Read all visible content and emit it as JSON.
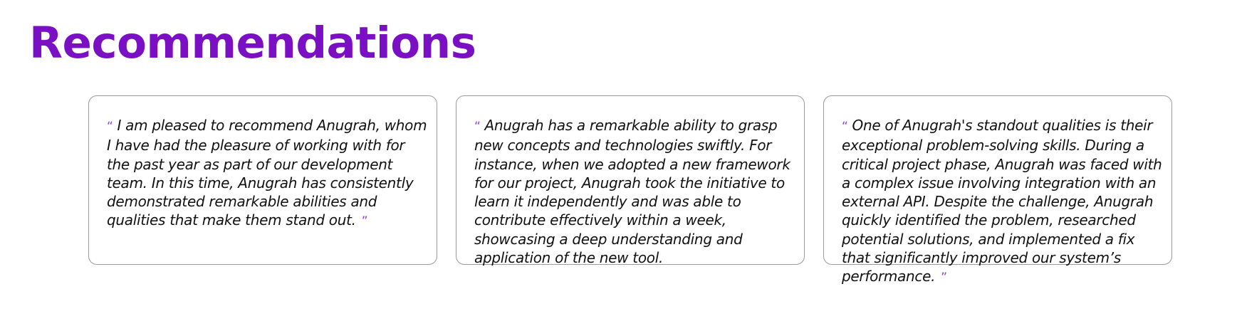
{
  "section": {
    "title": "Recommendations"
  },
  "quote_marks": {
    "open": "“",
    "close": "”"
  },
  "recommendations": [
    {
      "text": "I am pleased to recommend Anugrah, whom I have had the pleasure of working with for the past year as part of our development team. In this time, Anugrah has consistently demonstrated remarkable abilities and qualities that make them stand out."
    },
    {
      "text": "Anugrah has a remarkable ability to grasp new concepts and technologies swiftly. For instance, when we adopted a new framework for our project, Anugrah took the initiative to learn it independently and was able to contribute effectively within a week, showcasing a deep understanding and application of the new tool."
    },
    {
      "text": "One of Anugrah's standout qualities is their exceptional problem-solving skills. During a critical project phase, Anugrah was faced with a complex issue involving integration with an external API. Despite the challenge, Anugrah quickly identified the problem, researched potential solutions, and implemented a fix that significantly improved our system’s performance."
    }
  ],
  "colors": {
    "title": "#7a0fc4",
    "quote_mark": "#8b3fd6",
    "card_border": "#9a9a9a",
    "text": "#111111"
  }
}
